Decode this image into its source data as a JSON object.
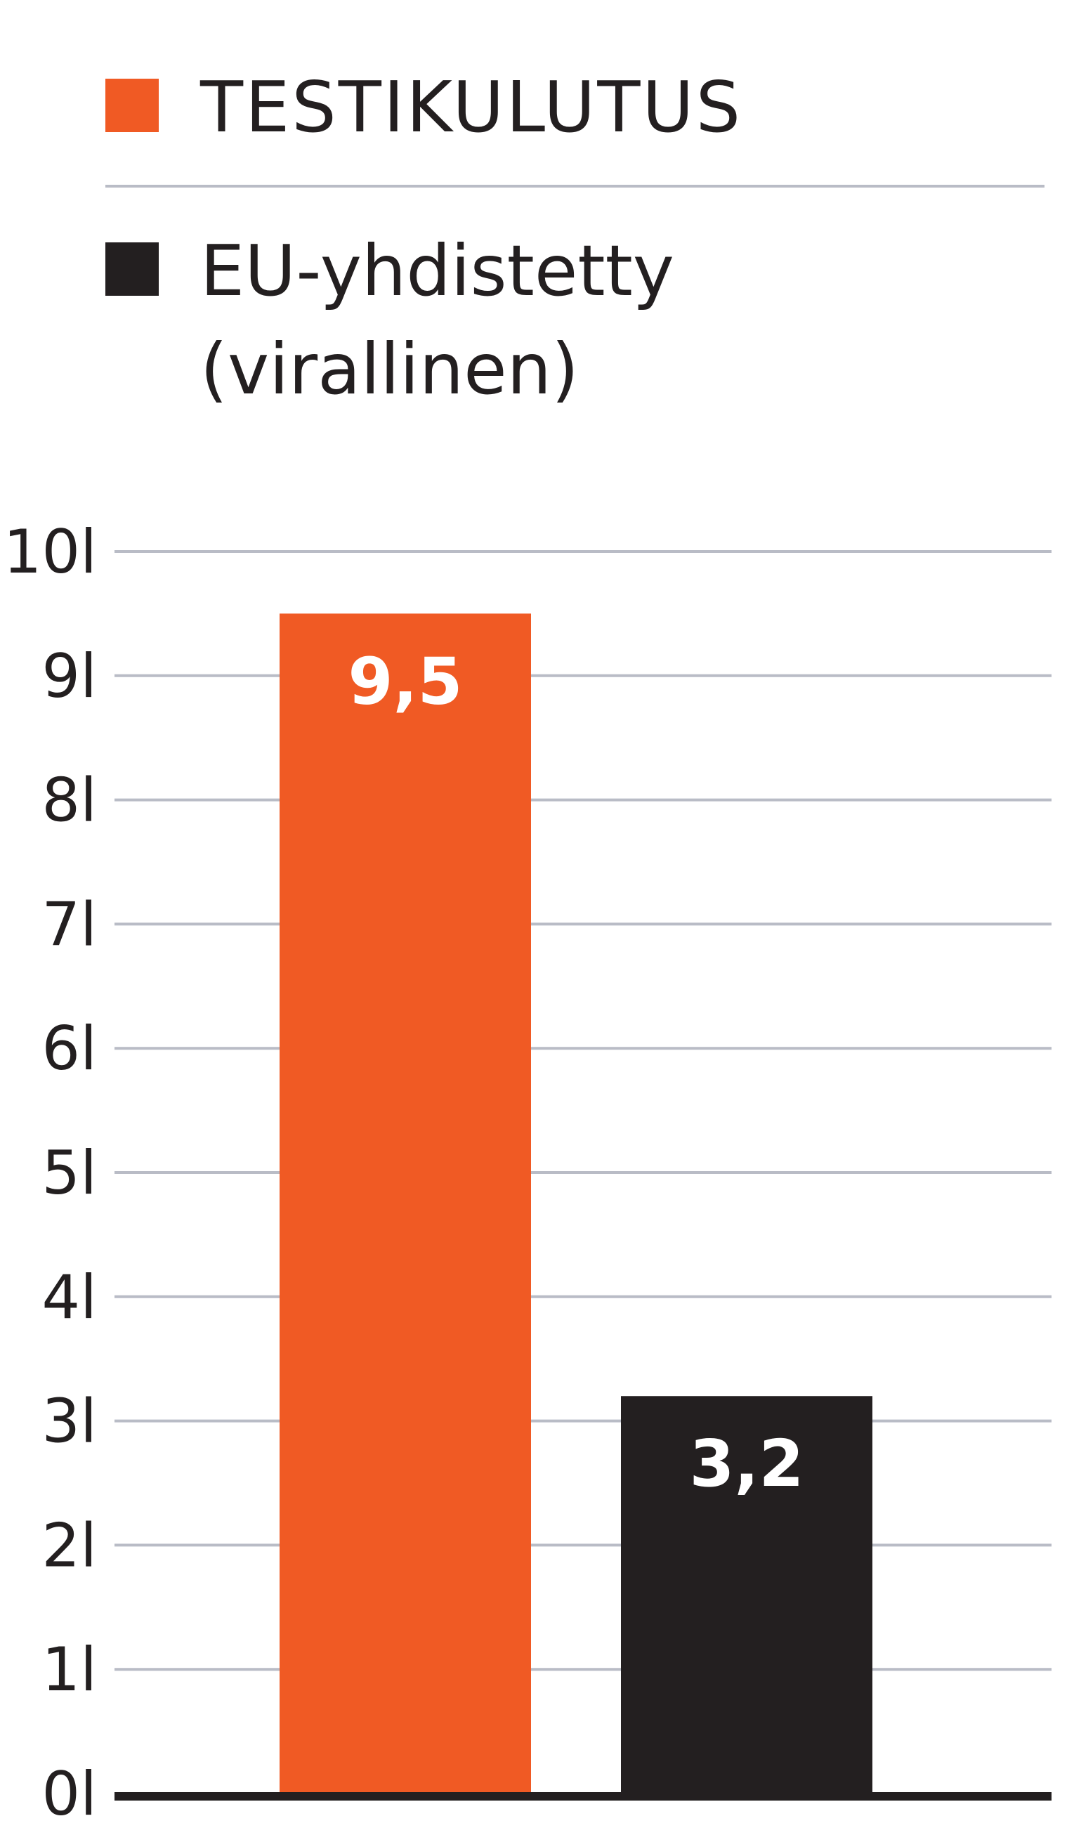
{
  "chart_data": {
    "type": "bar",
    "title": "",
    "xlabel": "",
    "ylabel": "",
    "ylim": [
      0,
      10
    ],
    "yticks": [
      0,
      1,
      2,
      3,
      4,
      5,
      6,
      7,
      8,
      9,
      10
    ],
    "ytick_labels": [
      "0l",
      "1l",
      "2l",
      "3l",
      "4l",
      "5l",
      "6l",
      "7l",
      "8l",
      "9l",
      "10l"
    ],
    "grid": true,
    "legend_position": "top",
    "categories": [
      "TESTIKULUTUS",
      "EU-yhdistetty (virallinen)"
    ],
    "values": [
      9.5,
      3.2
    ],
    "value_labels": [
      "9,5",
      "3,2"
    ],
    "colors": [
      "#f05a24",
      "#231f20"
    ],
    "legend": [
      {
        "label_lines": [
          "TESTIKULUTUS"
        ],
        "color": "#f05a24"
      },
      {
        "label_lines": [
          "EU-yhdistetty",
          "(virallinen)"
        ],
        "color": "#231f20"
      }
    ]
  },
  "style": {
    "grid_color": "#b9bcc6",
    "baseline_color": "#231f20",
    "divider_color": "#b9bcc6"
  }
}
